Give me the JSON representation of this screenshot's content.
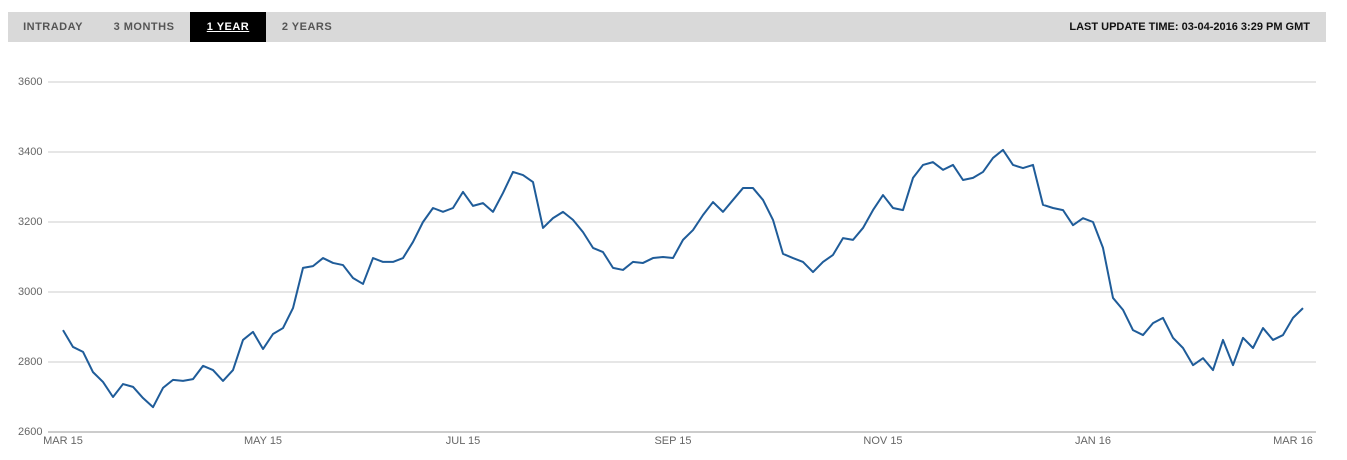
{
  "toolbar": {
    "tabs": [
      "INTRADAY",
      "3 MONTHS",
      "1 YEAR",
      "2 YEARS"
    ],
    "last_update": "LAST UPDATE TIME: 03-04-2016 3:29 PM GMT"
  },
  "chart_data": {
    "type": "line",
    "color": "#1f5c99",
    "grid": true,
    "ylim": [
      2600,
      3600
    ],
    "yticks": [
      2600,
      2800,
      3000,
      3200,
      3400,
      3600
    ],
    "categories": [
      "MAR 15",
      null,
      null,
      null,
      null,
      null,
      null,
      null,
      null,
      null,
      null,
      null,
      null,
      null,
      null,
      null,
      null,
      null,
      null,
      null,
      "MAY 15",
      null,
      null,
      null,
      null,
      null,
      null,
      null,
      null,
      null,
      null,
      null,
      null,
      null,
      null,
      null,
      null,
      null,
      null,
      null,
      "JUL 15",
      null,
      null,
      null,
      null,
      null,
      null,
      null,
      null,
      null,
      null,
      null,
      null,
      null,
      null,
      null,
      null,
      null,
      null,
      null,
      null,
      "SEP 15",
      null,
      null,
      null,
      null,
      null,
      null,
      null,
      null,
      null,
      null,
      null,
      null,
      null,
      null,
      null,
      null,
      null,
      null,
      null,
      null,
      "NOV 15",
      null,
      null,
      null,
      null,
      null,
      null,
      null,
      null,
      null,
      null,
      null,
      null,
      null,
      null,
      null,
      null,
      null,
      null,
      null,
      null,
      "JAN 16",
      null,
      null,
      null,
      null,
      null,
      null,
      null,
      null,
      null,
      null,
      null,
      null,
      null,
      null,
      null,
      null,
      null,
      null,
      null,
      "MAR 16",
      null
    ],
    "values": [
      2891,
      2843,
      2829,
      2771,
      2743,
      2700,
      2737,
      2729,
      2697,
      2671,
      2726,
      2749,
      2746,
      2751,
      2789,
      2777,
      2746,
      2777,
      2863,
      2886,
      2837,
      2880,
      2897,
      2954,
      3069,
      3074,
      3097,
      3083,
      3077,
      3040,
      3023,
      3097,
      3086,
      3086,
      3097,
      3143,
      3200,
      3240,
      3229,
      3240,
      3286,
      3246,
      3254,
      3229,
      3283,
      3343,
      3334,
      3314,
      3183,
      3211,
      3229,
      3206,
      3171,
      3126,
      3114,
      3069,
      3063,
      3086,
      3083,
      3097,
      3100,
      3097,
      3149,
      3177,
      3220,
      3257,
      3229,
      3263,
      3297,
      3297,
      3263,
      3206,
      3109,
      3097,
      3086,
      3057,
      3086,
      3106,
      3154,
      3149,
      3183,
      3234,
      3277,
      3240,
      3234,
      3326,
      3363,
      3371,
      3349,
      3363,
      3320,
      3326,
      3343,
      3383,
      3406,
      3363,
      3354,
      3363,
      3249,
      3240,
      3234,
      3191,
      3211,
      3200,
      3126,
      2983,
      2949,
      2891,
      2877,
      2911,
      2926,
      2869,
      2840,
      2791,
      2811,
      2777,
      2863,
      2791,
      2869,
      2840,
      2897,
      2863,
      2877,
      2926,
      2954
    ]
  }
}
